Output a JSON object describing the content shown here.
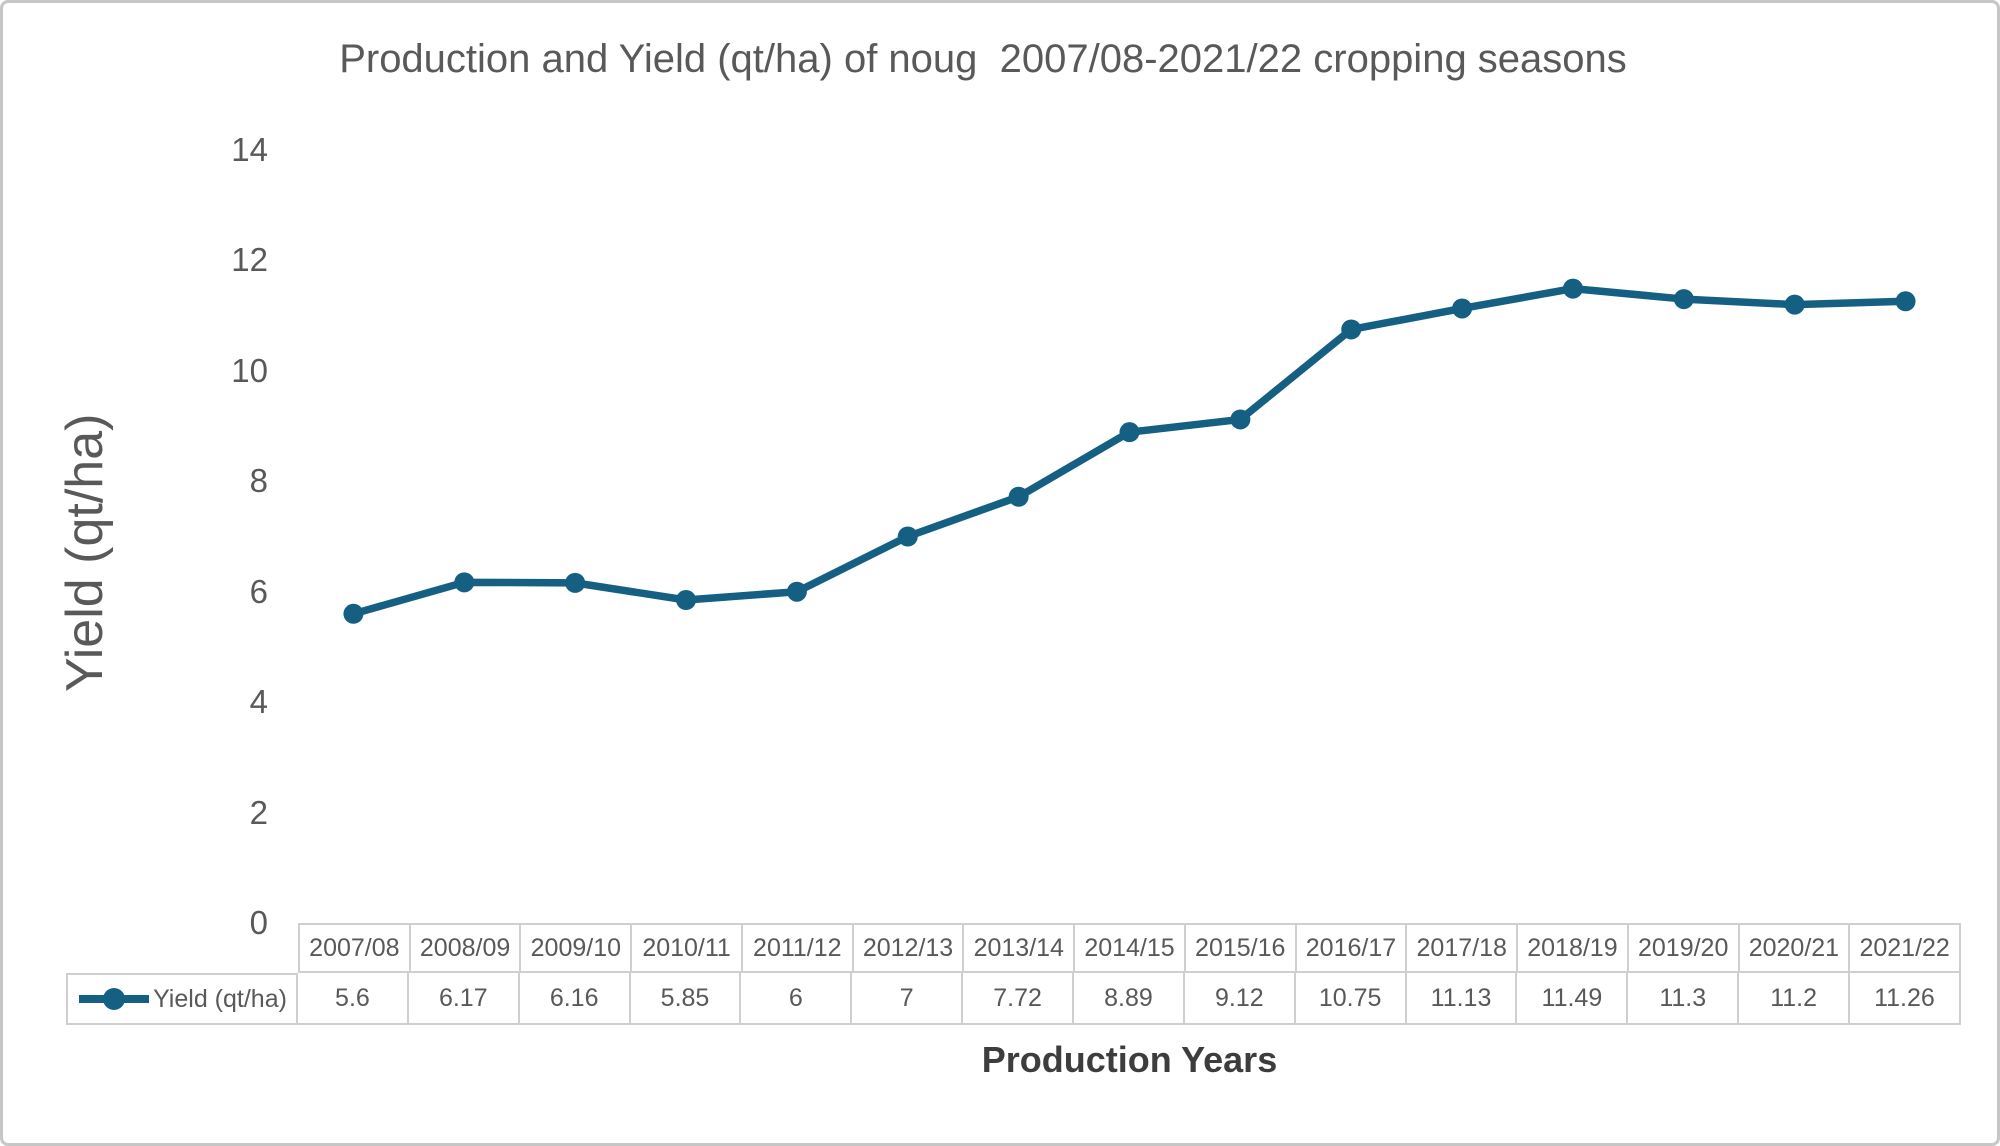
{
  "frame": {
    "background_color": "#ffffff",
    "border_color": "#c6c6c6"
  },
  "chart_data": {
    "type": "line",
    "title": "Production and Yield (qt/ha) of noug  2007/08-2021/22 cropping seasons",
    "xlabel": "Production Years",
    "ylabel": "Yield (qt/ha)",
    "ylim": [
      0,
      14
    ],
    "yticks": [
      0,
      2,
      4,
      6,
      8,
      10,
      12,
      14
    ],
    "grid": false,
    "legend_position": "data-table-left",
    "has_data_table": true,
    "categories": [
      "2007/08",
      "2008/09",
      "2009/10",
      "2010/11",
      "2011/12",
      "2012/13",
      "2013/14",
      "2014/15",
      "2015/16",
      "2016/17",
      "2017/18",
      "2018/19",
      "2019/20",
      "2020/21",
      "2021/22"
    ],
    "series": [
      {
        "name": "Yield (qt/ha)",
        "color": "#156082",
        "marker": "circle",
        "values": [
          5.6,
          6.17,
          6.16,
          5.85,
          6,
          7,
          7.72,
          8.89,
          9.12,
          10.75,
          11.13,
          11.49,
          11.3,
          11.2,
          11.26
        ]
      }
    ],
    "text_color": "#595959",
    "xlabel_color": "#3d3d3d",
    "table_border_color": "#cfcfcf"
  }
}
